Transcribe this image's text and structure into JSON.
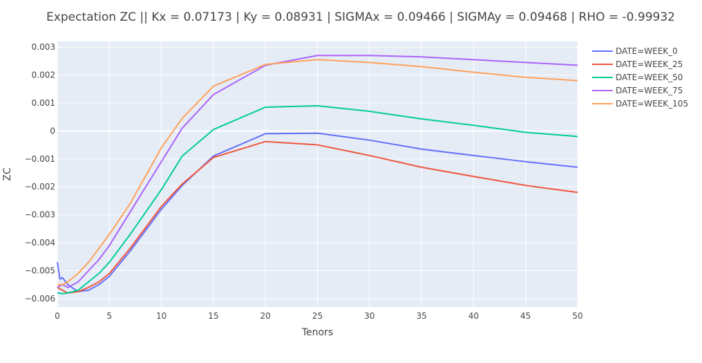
{
  "chart_data": {
    "type": "line",
    "title": "Expectation ZC || Kx = 0.07173 | Ky = 0.08931 | SIGMAx = 0.09466 | SIGMAy = 0.09468 | RHO = -0.99932",
    "xlabel": "Tenors",
    "ylabel": "ZC",
    "xlim": [
      0,
      50
    ],
    "ylim": [
      -0.0063,
      0.0032
    ],
    "x_ticks": [
      0,
      5,
      10,
      15,
      20,
      25,
      30,
      35,
      40,
      45,
      50
    ],
    "y_ticks": [
      0.003,
      0.002,
      0.001,
      0,
      -0.001,
      -0.002,
      -0.003,
      -0.004,
      -0.005,
      -0.006
    ],
    "y_tick_labels": [
      "0.003",
      "0.002",
      "0.001",
      "0",
      "−0.001",
      "−0.002",
      "−0.003",
      "−0.004",
      "−0.005",
      "−0.006"
    ],
    "x_tick_labels": [
      "0",
      "5",
      "10",
      "15",
      "20",
      "25",
      "30",
      "35",
      "40",
      "45",
      "50"
    ],
    "grid": true,
    "legend_position": "top-right",
    "background_color": "#e5ecf6",
    "series": [
      {
        "name": "DATE=WEEK_0",
        "color": "#636efa",
        "x": [
          0,
          0.25,
          0.5,
          1,
          2,
          3,
          4,
          5,
          7,
          10,
          12,
          15,
          20,
          25,
          30,
          35,
          40,
          45,
          50
        ],
        "y": [
          -0.0047,
          -0.0053,
          -0.00525,
          -0.0055,
          -0.00575,
          -0.0057,
          -0.0055,
          -0.0052,
          -0.0043,
          -0.0028,
          -0.00195,
          -0.0009,
          -0.0001,
          -8e-05,
          -0.00033,
          -0.00065,
          -0.00088,
          -0.0011,
          -0.0013
        ]
      },
      {
        "name": "DATE=WEEK_25",
        "color": "#ef553b",
        "x": [
          0,
          0.25,
          0.5,
          1,
          2,
          3,
          4,
          5,
          7,
          10,
          12,
          15,
          20,
          25,
          30,
          35,
          40,
          45,
          50
        ],
        "y": [
          -0.0056,
          -0.00565,
          -0.0057,
          -0.0058,
          -0.00575,
          -0.0056,
          -0.0054,
          -0.0051,
          -0.0042,
          -0.0027,
          -0.0019,
          -0.00095,
          -0.00038,
          -0.0005,
          -0.00088,
          -0.0013,
          -0.00163,
          -0.00195,
          -0.0022
        ]
      },
      {
        "name": "DATE=WEEK_50",
        "color": "#00cc96",
        "x": [
          0,
          0.5,
          1,
          2,
          3,
          4,
          5,
          7,
          10,
          12,
          15,
          20,
          25,
          30,
          35,
          40,
          45,
          50
        ],
        "y": [
          -0.0058,
          -0.00582,
          -0.0058,
          -0.0057,
          -0.0054,
          -0.0051,
          -0.0047,
          -0.0037,
          -0.0021,
          -0.0009,
          5e-05,
          0.00085,
          0.0009,
          0.0007,
          0.00043,
          0.0002,
          -5e-05,
          -0.0002
        ]
      },
      {
        "name": "DATE=WEEK_75",
        "color": "#ab63fa",
        "x": [
          0,
          0.5,
          1,
          2,
          3,
          4,
          5,
          7,
          10,
          12,
          15,
          20,
          25,
          30,
          35,
          40,
          45,
          50
        ],
        "y": [
          -0.0056,
          -0.0055,
          -0.0056,
          -0.0054,
          -0.005,
          -0.0046,
          -0.0041,
          -0.0029,
          -0.0011,
          0.0001,
          0.0013,
          0.00235,
          0.0027,
          0.0027,
          0.00265,
          0.00255,
          0.00245,
          0.00235
        ]
      },
      {
        "name": "DATE=WEEK_105",
        "color": "#ffa15a",
        "x": [
          0,
          0.5,
          1,
          2,
          3,
          4,
          5,
          7,
          10,
          12,
          15,
          20,
          25,
          30,
          35,
          40,
          45,
          50
        ],
        "y": [
          -0.0055,
          -0.0055,
          -0.0054,
          -0.0051,
          -0.0047,
          -0.0042,
          -0.0037,
          -0.0026,
          -0.0006,
          0.00045,
          0.0016,
          0.00238,
          0.00255,
          0.00245,
          0.0023,
          0.0021,
          0.00192,
          0.0018
        ]
      }
    ]
  }
}
